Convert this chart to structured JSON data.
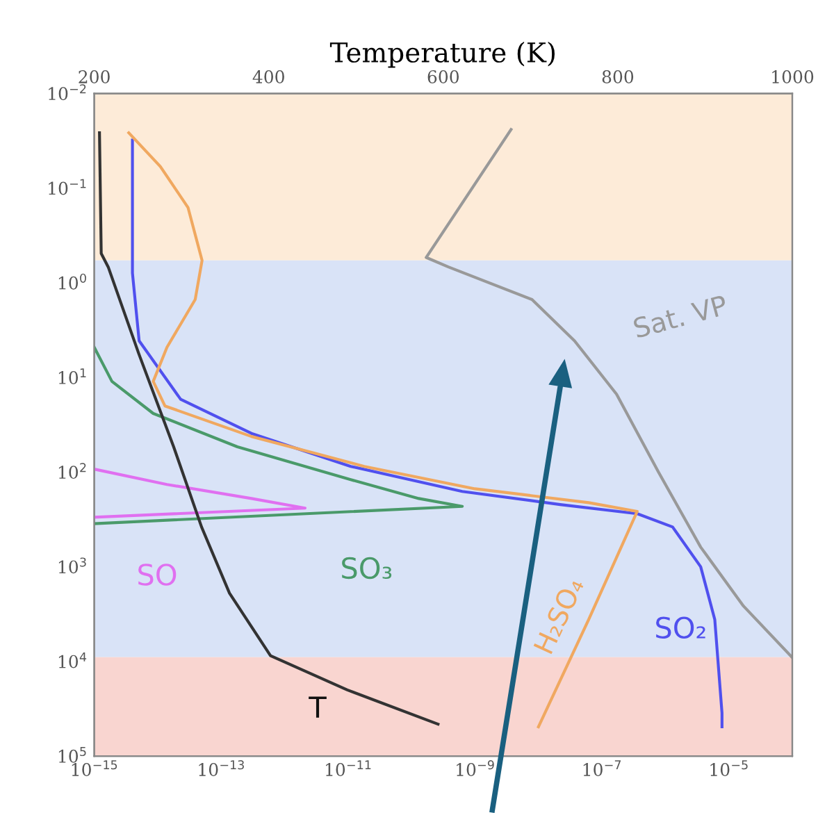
{
  "chart_data": {
    "type": "line",
    "x2label": "Temperature (K)",
    "log": "xy",
    "xlim": [
      1e-15,
      0.0001
    ],
    "xticks": [
      {
        "value": 1e-15,
        "label": "10$^{−15}$"
      },
      {
        "value": 1e-13,
        "label": "10$^{−13}$"
      },
      {
        "value": 1e-11,
        "label": "10$^{−11}$"
      },
      {
        "value": 1e-09,
        "label": "10$^{−9}$"
      },
      {
        "value": 1e-07,
        "label": "10$^{−7}$"
      },
      {
        "value": 1e-05,
        "label": "10$^{−5}$"
      }
    ],
    "x2lim": [
      200,
      1000
    ],
    "x2ticks": [
      200,
      400,
      600,
      800,
      1000
    ],
    "ylim": [
      100000,
      0.01
    ],
    "yticks": [
      {
        "value": 0.01,
        "label": "10$^{−2}$"
      },
      {
        "value": 0.1,
        "label": "10$^{−1}$"
      },
      {
        "value": 1,
        "label": "10$^{0}$"
      },
      {
        "value": 10,
        "label": "10$^{1}$"
      },
      {
        "value": 100,
        "label": "10$^{2}$"
      },
      {
        "value": 1000,
        "label": "10$^{3}$"
      },
      {
        "value": 10000,
        "label": "10$^{4}$"
      },
      {
        "value": 100000,
        "label": "10$^{5}$"
      }
    ],
    "bands": [
      {
        "axis": "y",
        "from": 0.01,
        "to": 0.58,
        "color": "#fdebd8"
      },
      {
        "axis": "y",
        "from": 0.58,
        "to": 9000,
        "color": "#d9e3f7"
      },
      {
        "axis": "y",
        "from": 9000,
        "to": 100000,
        "color": "#f9d5d0"
      }
    ],
    "series": [
      {
        "name": "T",
        "color": "#333333",
        "axis": "x2",
        "x": [
          206,
          208,
          216,
          251,
          291,
          323,
          355,
          402,
          490,
          594
        ],
        "values": [
          0.026,
          0.49,
          0.68,
          5.6,
          54,
          380,
          1900,
          8700,
          20000,
          46000
        ]
      },
      {
        "name": "SO₂",
        "color": "#5050ee",
        "x": [
          4e-15,
          4e-15,
          5.1e-15,
          2.3e-14,
          3e-13,
          1.1e-11,
          6.3e-10,
          2.2e-08,
          3.6e-07,
          1.3e-06,
          3.6e-06,
          6e-06,
          7.8e-06,
          7.8e-06
        ],
        "values": [
          0.031,
          0.79,
          4.1,
          17,
          39,
          87,
          160,
          220,
          275,
          380,
          1000,
          3600,
          35000,
          49000
        ]
      },
      {
        "name": "H₂SO₄",
        "color": "#f0a860",
        "x": [
          3.5e-15,
          1.1e-14,
          3e-14,
          5e-14,
          3.9e-14,
          1.4e-14,
          8.5e-15,
          1.3e-14,
          3e-13,
          1.8e-11,
          1e-09,
          6.2e-08,
          3.6e-07,
          6.2e-08,
          1e-08
        ],
        "values": [
          0.026,
          0.059,
          0.16,
          0.58,
          1.5,
          4.8,
          11,
          20,
          42,
          87,
          150,
          210,
          260,
          3600,
          49000
        ]
      },
      {
        "name": "SO₃",
        "color": "#4a9a6a",
        "x": [
          1e-15,
          1.9e-15,
          8.5e-15,
          1.8e-13,
          1.1e-11,
          1.3e-10,
          6.3e-10,
          1e-15
        ],
        "values": [
          4.8,
          11,
          24,
          54,
          120,
          190,
          230,
          350
        ]
      },
      {
        "name": "SO",
        "color": "#e070f0",
        "x": [
          1e-15,
          1.4e-14,
          3e-13,
          2.1e-12,
          1e-15
        ],
        "values": [
          93,
          135,
          190,
          240,
          300
        ]
      },
      {
        "name": "Sat. VP",
        "color": "#999999",
        "x": [
          3.7e-09,
          1.7e-10,
          3.8e-10,
          7.9e-09,
          3.7e-08,
          1.7e-07,
          7.8e-07,
          3.6e-06,
          1.7e-05,
          0.0001
        ],
        "values": [
          0.024,
          0.54,
          0.68,
          1.5,
          4.1,
          15,
          100,
          620,
          2600,
          9100
        ]
      }
    ]
  }
}
